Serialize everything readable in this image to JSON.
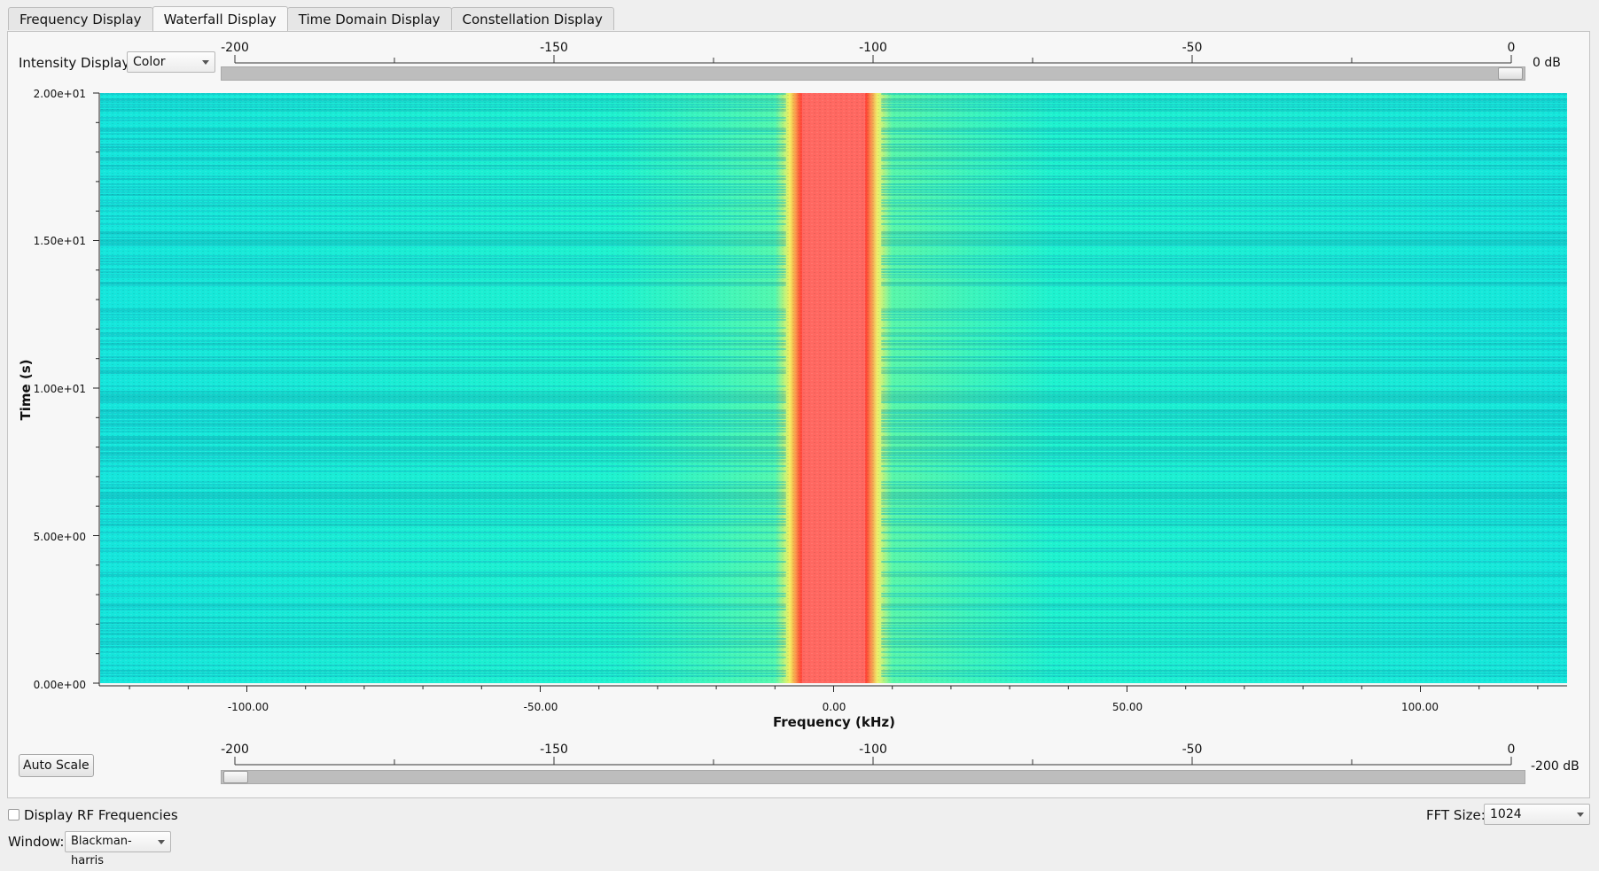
{
  "tabs": [
    {
      "label": "Frequency Display",
      "active": false
    },
    {
      "label": "Waterfall Display",
      "active": true
    },
    {
      "label": "Time Domain Display",
      "active": false
    },
    {
      "label": "Constellation Display",
      "active": false
    }
  ],
  "intensity": {
    "label": "Intensity Display:",
    "value": "Color"
  },
  "top_scale": {
    "ticks": [
      "-200",
      "-150",
      "-100",
      "-50",
      "0"
    ],
    "value_label": "0 dB",
    "value_db": 0
  },
  "bottom_scale": {
    "ticks": [
      "-200",
      "-150",
      "-100",
      "-50",
      "0"
    ],
    "value_label": "-200 dB",
    "value_db": -200
  },
  "auto_scale_label": "Auto Scale",
  "rf_checkbox": {
    "label": "Display RF Frequencies",
    "checked": false
  },
  "fft": {
    "label": "FFT Size:",
    "value": "1024"
  },
  "window": {
    "label": "Window:",
    "value": "Blackman-harris"
  },
  "colors": {
    "background": "#00e5d0",
    "signal": "#ff3030"
  },
  "chart_data": {
    "type": "heatmap",
    "xlabel": "Frequency (kHz)",
    "ylabel": "Time (s)",
    "xlim": [
      -125,
      125
    ],
    "ylim": [
      0,
      20
    ],
    "x_ticks": [
      {
        "value": -100,
        "label": "-100.00"
      },
      {
        "value": -50,
        "label": "-50.00"
      },
      {
        "value": 0,
        "label": "0.00"
      },
      {
        "value": 50,
        "label": "50.00"
      },
      {
        "value": 100,
        "label": "100.00"
      }
    ],
    "y_ticks": [
      {
        "value": 0,
        "label": "0.00e+00"
      },
      {
        "value": 5,
        "label": "5.00e+00"
      },
      {
        "value": 10,
        "label": "1.00e+01"
      },
      {
        "value": 15,
        "label": "1.50e+01"
      },
      {
        "value": 20,
        "label": "2.00e+01"
      }
    ],
    "signal_band_khz": [
      -6,
      6
    ],
    "colormap": "Color"
  }
}
